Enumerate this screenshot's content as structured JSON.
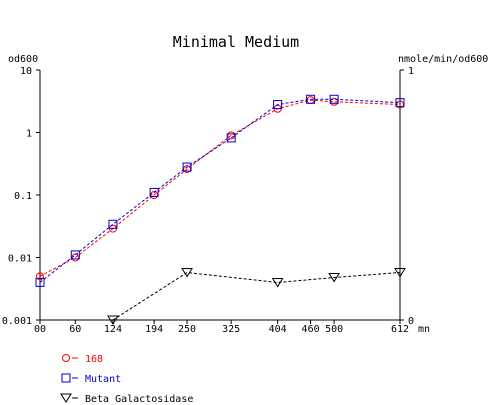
{
  "chart_data": {
    "type": "line",
    "title": "Minimal Medium",
    "left_axis_unit": "od600",
    "right_axis_unit": "nmole/min/od600",
    "x_unit": "mn",
    "x": [
      0,
      60,
      124,
      194,
      250,
      325,
      404,
      460,
      500,
      612
    ],
    "x_tick_labels": [
      "00",
      "60",
      "124",
      "194",
      "250",
      "325",
      "404",
      "460",
      "500",
      "612"
    ],
    "left_scale": "log",
    "left_ylim": [
      0.001,
      10
    ],
    "left_tick_labels": [
      "10",
      "1",
      "0.1",
      "0.01",
      "0.001"
    ],
    "right_ylim": [
      0,
      1
    ],
    "right_tick_labels": [
      "1",
      "0"
    ],
    "series": [
      {
        "name": "168",
        "axis": "left",
        "color": "#ff0000",
        "marker": "circle",
        "line": "dashed",
        "x": [
          0,
          60,
          124,
          194,
          250,
          325,
          404,
          460,
          500,
          612
        ],
        "values": [
          0.005,
          0.01,
          0.029,
          0.1,
          0.26,
          0.9,
          2.4,
          3.3,
          3.1,
          2.8
        ]
      },
      {
        "name": "Mutant",
        "axis": "left",
        "color": "#0000cc",
        "marker": "square",
        "line": "dashed",
        "x": [
          0,
          60,
          124,
          194,
          250,
          325,
          404,
          460,
          500,
          612
        ],
        "values": [
          0.004,
          0.011,
          0.034,
          0.11,
          0.28,
          0.82,
          2.8,
          3.4,
          3.4,
          3.0
        ]
      },
      {
        "name": "Beta Galactosidase",
        "axis": "right",
        "color": "#000000",
        "marker": "triangle-down",
        "line": "dashed",
        "x": [
          124,
          250,
          404,
          500,
          612
        ],
        "values": [
          0.0,
          0.19,
          0.15,
          0.17,
          0.19
        ]
      }
    ],
    "legend_position": "bottom-left",
    "grid": false
  }
}
